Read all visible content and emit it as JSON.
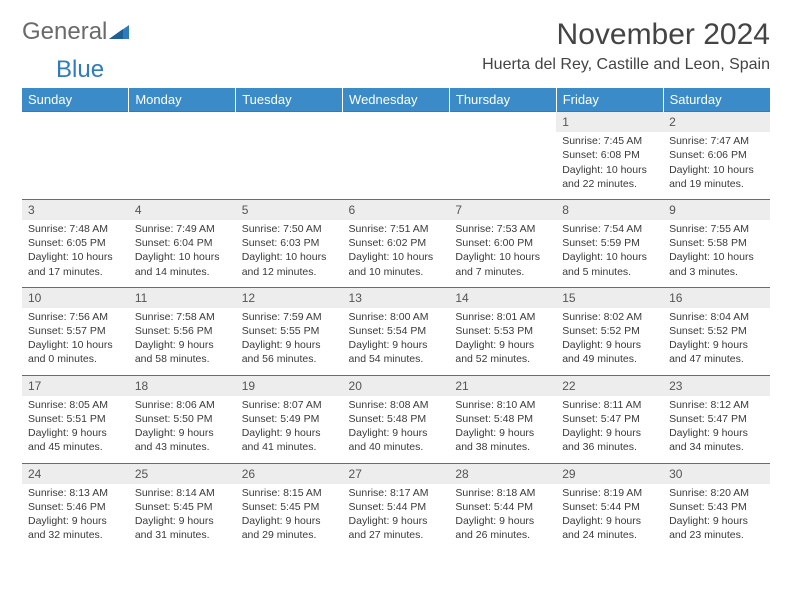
{
  "logo": {
    "text1": "General",
    "text2": "Blue"
  },
  "title": "November 2024",
  "location": "Huerta del Rey, Castille and Leon, Spain",
  "day_headers": [
    "Sunday",
    "Monday",
    "Tuesday",
    "Wednesday",
    "Thursday",
    "Friday",
    "Saturday"
  ],
  "colors": {
    "header_bg": "#3b8bc8",
    "header_text": "#ffffff",
    "rule": "#2f7bbf",
    "daynum_bg": "#ededed",
    "body_text": "#3a3a3a",
    "title_text": "#444444",
    "logo_gray": "#6a6a6a",
    "logo_blue": "#2f7bbf",
    "page_bg": "#ffffff"
  },
  "typography": {
    "title_fontsize": 30,
    "location_fontsize": 16,
    "header_fontsize": 13,
    "daynum_fontsize": 12,
    "cell_fontsize": 10.5
  },
  "weeks": [
    [
      null,
      null,
      null,
      null,
      null,
      {
        "n": "1",
        "sr": "Sunrise: 7:45 AM",
        "ss": "Sunset: 6:08 PM",
        "d1": "Daylight: 10 hours",
        "d2": "and 22 minutes."
      },
      {
        "n": "2",
        "sr": "Sunrise: 7:47 AM",
        "ss": "Sunset: 6:06 PM",
        "d1": "Daylight: 10 hours",
        "d2": "and 19 minutes."
      }
    ],
    [
      {
        "n": "3",
        "sr": "Sunrise: 7:48 AM",
        "ss": "Sunset: 6:05 PM",
        "d1": "Daylight: 10 hours",
        "d2": "and 17 minutes."
      },
      {
        "n": "4",
        "sr": "Sunrise: 7:49 AM",
        "ss": "Sunset: 6:04 PM",
        "d1": "Daylight: 10 hours",
        "d2": "and 14 minutes."
      },
      {
        "n": "5",
        "sr": "Sunrise: 7:50 AM",
        "ss": "Sunset: 6:03 PM",
        "d1": "Daylight: 10 hours",
        "d2": "and 12 minutes."
      },
      {
        "n": "6",
        "sr": "Sunrise: 7:51 AM",
        "ss": "Sunset: 6:02 PM",
        "d1": "Daylight: 10 hours",
        "d2": "and 10 minutes."
      },
      {
        "n": "7",
        "sr": "Sunrise: 7:53 AM",
        "ss": "Sunset: 6:00 PM",
        "d1": "Daylight: 10 hours",
        "d2": "and 7 minutes."
      },
      {
        "n": "8",
        "sr": "Sunrise: 7:54 AM",
        "ss": "Sunset: 5:59 PM",
        "d1": "Daylight: 10 hours",
        "d2": "and 5 minutes."
      },
      {
        "n": "9",
        "sr": "Sunrise: 7:55 AM",
        "ss": "Sunset: 5:58 PM",
        "d1": "Daylight: 10 hours",
        "d2": "and 3 minutes."
      }
    ],
    [
      {
        "n": "10",
        "sr": "Sunrise: 7:56 AM",
        "ss": "Sunset: 5:57 PM",
        "d1": "Daylight: 10 hours",
        "d2": "and 0 minutes."
      },
      {
        "n": "11",
        "sr": "Sunrise: 7:58 AM",
        "ss": "Sunset: 5:56 PM",
        "d1": "Daylight: 9 hours",
        "d2": "and 58 minutes."
      },
      {
        "n": "12",
        "sr": "Sunrise: 7:59 AM",
        "ss": "Sunset: 5:55 PM",
        "d1": "Daylight: 9 hours",
        "d2": "and 56 minutes."
      },
      {
        "n": "13",
        "sr": "Sunrise: 8:00 AM",
        "ss": "Sunset: 5:54 PM",
        "d1": "Daylight: 9 hours",
        "d2": "and 54 minutes."
      },
      {
        "n": "14",
        "sr": "Sunrise: 8:01 AM",
        "ss": "Sunset: 5:53 PM",
        "d1": "Daylight: 9 hours",
        "d2": "and 52 minutes."
      },
      {
        "n": "15",
        "sr": "Sunrise: 8:02 AM",
        "ss": "Sunset: 5:52 PM",
        "d1": "Daylight: 9 hours",
        "d2": "and 49 minutes."
      },
      {
        "n": "16",
        "sr": "Sunrise: 8:04 AM",
        "ss": "Sunset: 5:52 PM",
        "d1": "Daylight: 9 hours",
        "d2": "and 47 minutes."
      }
    ],
    [
      {
        "n": "17",
        "sr": "Sunrise: 8:05 AM",
        "ss": "Sunset: 5:51 PM",
        "d1": "Daylight: 9 hours",
        "d2": "and 45 minutes."
      },
      {
        "n": "18",
        "sr": "Sunrise: 8:06 AM",
        "ss": "Sunset: 5:50 PM",
        "d1": "Daylight: 9 hours",
        "d2": "and 43 minutes."
      },
      {
        "n": "19",
        "sr": "Sunrise: 8:07 AM",
        "ss": "Sunset: 5:49 PM",
        "d1": "Daylight: 9 hours",
        "d2": "and 41 minutes."
      },
      {
        "n": "20",
        "sr": "Sunrise: 8:08 AM",
        "ss": "Sunset: 5:48 PM",
        "d1": "Daylight: 9 hours",
        "d2": "and 40 minutes."
      },
      {
        "n": "21",
        "sr": "Sunrise: 8:10 AM",
        "ss": "Sunset: 5:48 PM",
        "d1": "Daylight: 9 hours",
        "d2": "and 38 minutes."
      },
      {
        "n": "22",
        "sr": "Sunrise: 8:11 AM",
        "ss": "Sunset: 5:47 PM",
        "d1": "Daylight: 9 hours",
        "d2": "and 36 minutes."
      },
      {
        "n": "23",
        "sr": "Sunrise: 8:12 AM",
        "ss": "Sunset: 5:47 PM",
        "d1": "Daylight: 9 hours",
        "d2": "and 34 minutes."
      }
    ],
    [
      {
        "n": "24",
        "sr": "Sunrise: 8:13 AM",
        "ss": "Sunset: 5:46 PM",
        "d1": "Daylight: 9 hours",
        "d2": "and 32 minutes."
      },
      {
        "n": "25",
        "sr": "Sunrise: 8:14 AM",
        "ss": "Sunset: 5:45 PM",
        "d1": "Daylight: 9 hours",
        "d2": "and 31 minutes."
      },
      {
        "n": "26",
        "sr": "Sunrise: 8:15 AM",
        "ss": "Sunset: 5:45 PM",
        "d1": "Daylight: 9 hours",
        "d2": "and 29 minutes."
      },
      {
        "n": "27",
        "sr": "Sunrise: 8:17 AM",
        "ss": "Sunset: 5:44 PM",
        "d1": "Daylight: 9 hours",
        "d2": "and 27 minutes."
      },
      {
        "n": "28",
        "sr": "Sunrise: 8:18 AM",
        "ss": "Sunset: 5:44 PM",
        "d1": "Daylight: 9 hours",
        "d2": "and 26 minutes."
      },
      {
        "n": "29",
        "sr": "Sunrise: 8:19 AM",
        "ss": "Sunset: 5:44 PM",
        "d1": "Daylight: 9 hours",
        "d2": "and 24 minutes."
      },
      {
        "n": "30",
        "sr": "Sunrise: 8:20 AM",
        "ss": "Sunset: 5:43 PM",
        "d1": "Daylight: 9 hours",
        "d2": "and 23 minutes."
      }
    ]
  ]
}
